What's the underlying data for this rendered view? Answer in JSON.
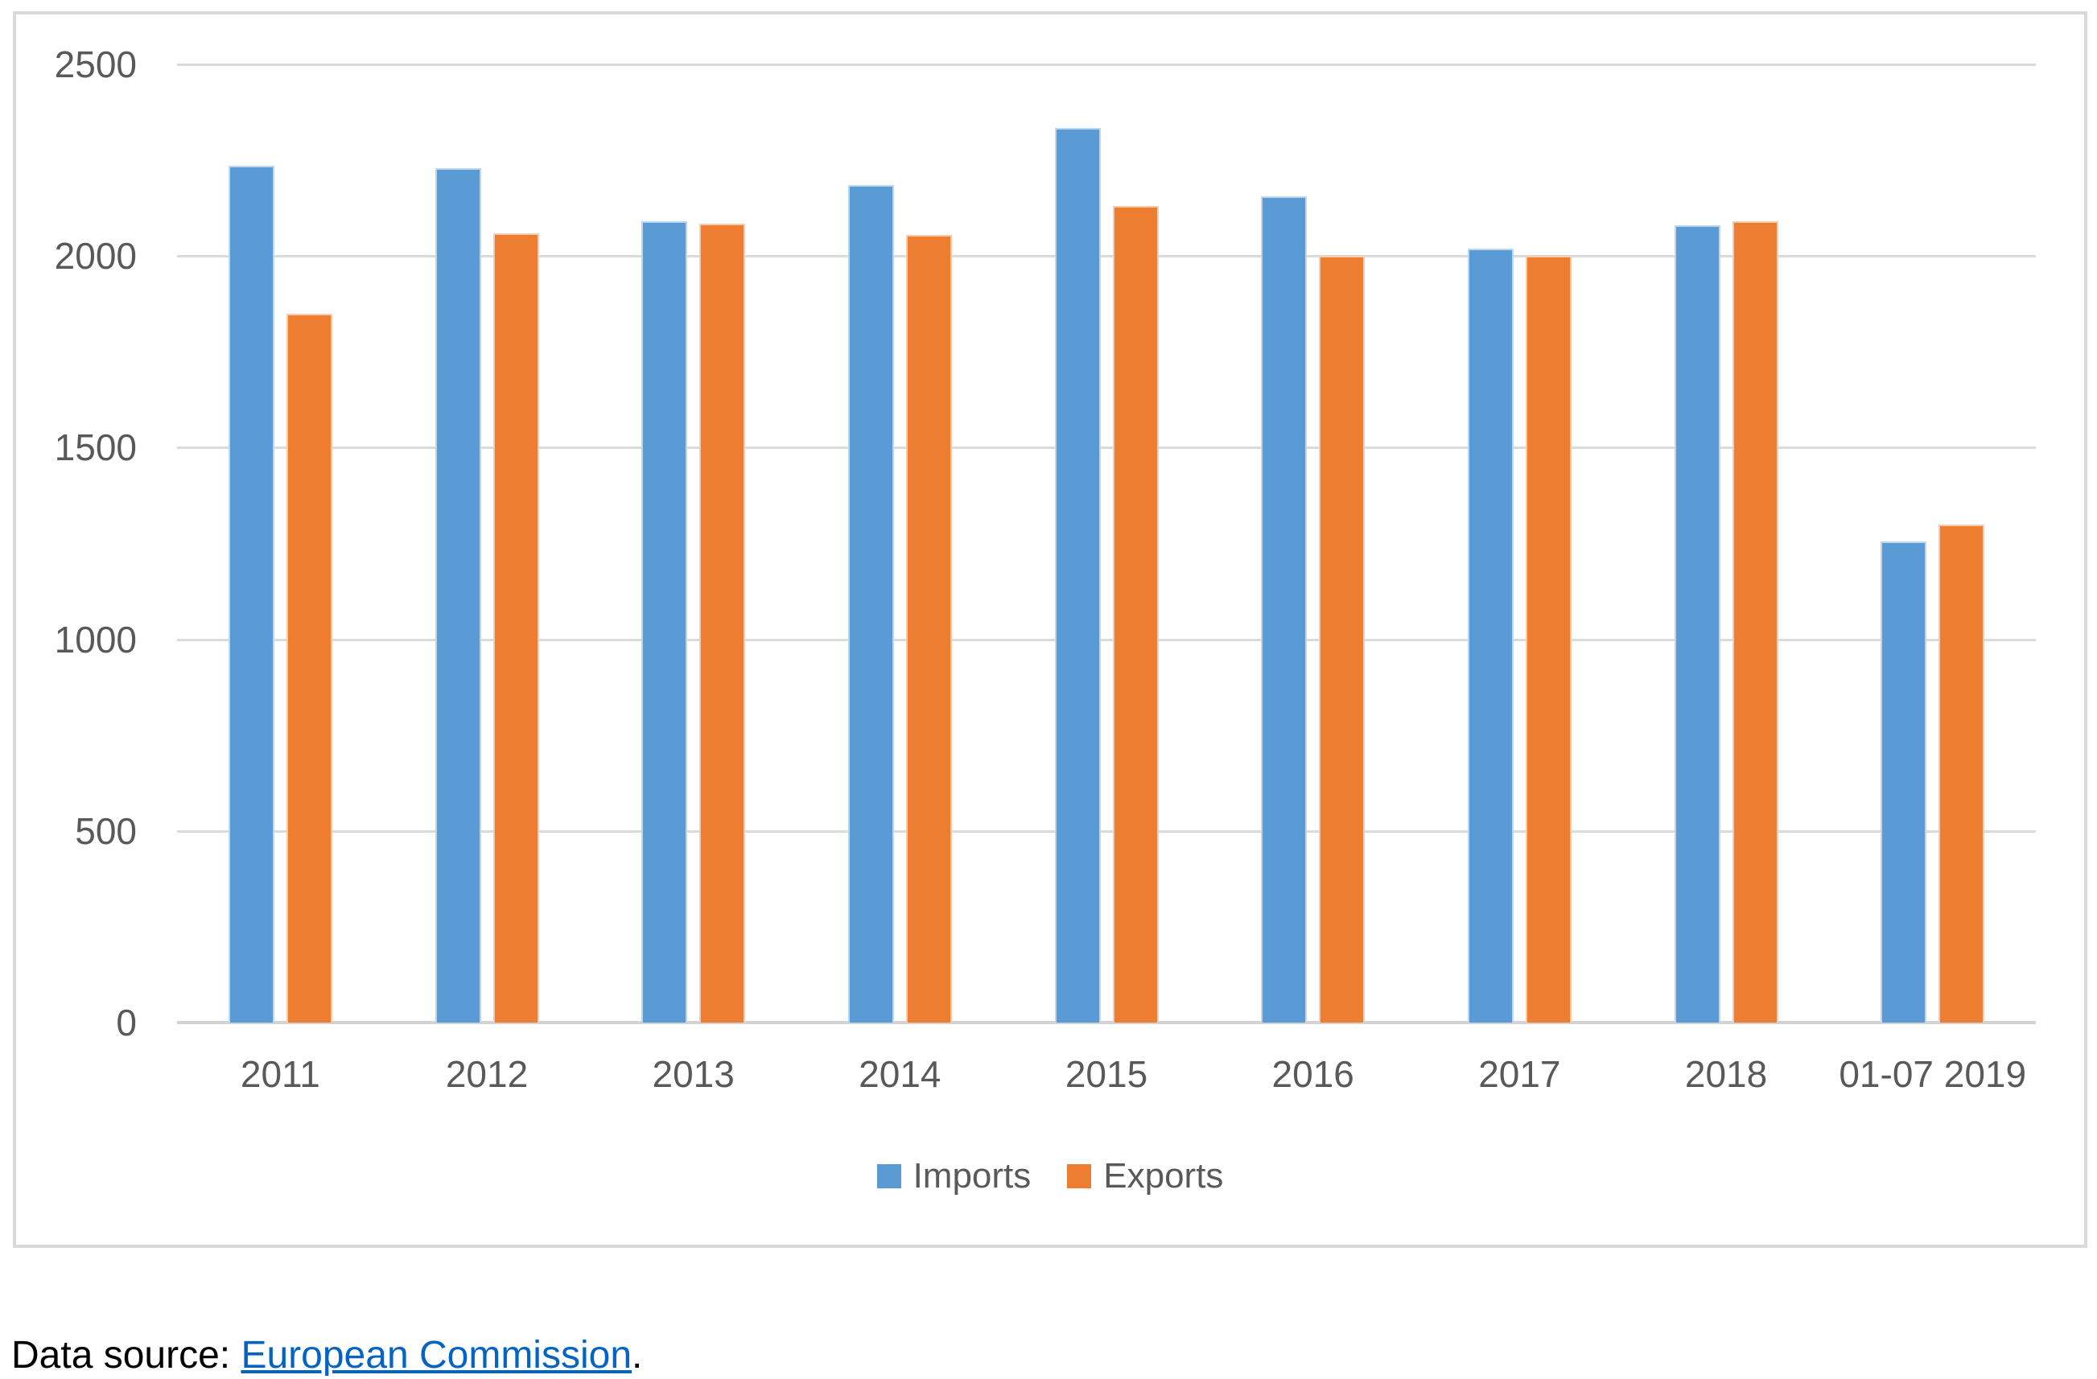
{
  "chart_data": {
    "type": "bar",
    "title": "",
    "categories": [
      "2011",
      "2012",
      "2013",
      "2014",
      "2015",
      "2016",
      "2017",
      "2018",
      "01-07 2019"
    ],
    "series": [
      {
        "name": "Imports",
        "color": "#5B9BD5",
        "edge_color": "#BDD7EE",
        "values": [
          2235,
          2230,
          2090,
          2185,
          2335,
          2155,
          2020,
          2080,
          1255
        ]
      },
      {
        "name": "Exports",
        "color": "#ED7D31",
        "edge_color": "#F7CBAC",
        "values": [
          1850,
          2060,
          2085,
          2055,
          2130,
          2000,
          2000,
          2090,
          1300
        ]
      }
    ],
    "xlabel": "",
    "ylabel": "",
    "ylim": [
      0,
      2500
    ],
    "yticks": [
      0,
      500,
      1000,
      1500,
      2000,
      2500
    ],
    "grid": "horizontal",
    "gridline_color": "#DBDBDB",
    "axis_line_color": "#D3D3D3",
    "tick_label_color": "#595959",
    "panel_border_color": "#D9D9D9",
    "legend_position": "bottom"
  },
  "caption": {
    "prefix": "Data source: ",
    "link_text": "European Commission",
    "suffix": ".",
    "link_color": "#0563C1"
  }
}
